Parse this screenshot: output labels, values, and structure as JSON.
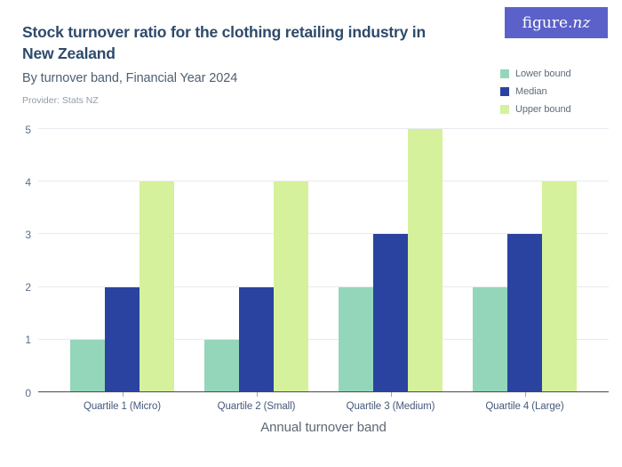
{
  "header": {
    "title": "Stock turnover ratio for the clothing retailing industry in New Zealand",
    "subtitle": "By turnover band, Financial Year 2024",
    "provider": "Provider: Stats NZ"
  },
  "logo": {
    "text_main": "figure.",
    "text_suffix": "nz",
    "background": "#5b61c9"
  },
  "chart_data": {
    "type": "bar",
    "title": "Stock turnover ratio for the clothing retailing industry in New Zealand",
    "subtitle": "By turnover band, Financial Year 2024",
    "categories": [
      "Quartile 1 (Micro)",
      "Quartile 2 (Small)",
      "Quartile 3 (Medium)",
      "Quartile 4 (Large)"
    ],
    "series": [
      {
        "name": "Lower bound",
        "color": "#94d6ba",
        "values": [
          1,
          1,
          2,
          2
        ]
      },
      {
        "name": "Median",
        "color": "#2a43a0",
        "values": [
          2,
          2,
          3,
          3
        ]
      },
      {
        "name": "Upper bound",
        "color": "#d5f19c",
        "values": [
          4,
          4,
          5,
          4
        ]
      }
    ],
    "xlabel": "Annual turnover band",
    "ylabel": "",
    "ylim": [
      0,
      5
    ],
    "yticks": [
      0,
      1,
      2,
      3,
      4,
      5
    ],
    "grid": true,
    "legend_position": "top-right",
    "colors": {
      "gridline": "#e9eaef",
      "zero_line": "#4a4a4a",
      "axis_text": "#5c6e8a",
      "category_text": "#46597a",
      "title_text": "#2e4a6b"
    }
  }
}
